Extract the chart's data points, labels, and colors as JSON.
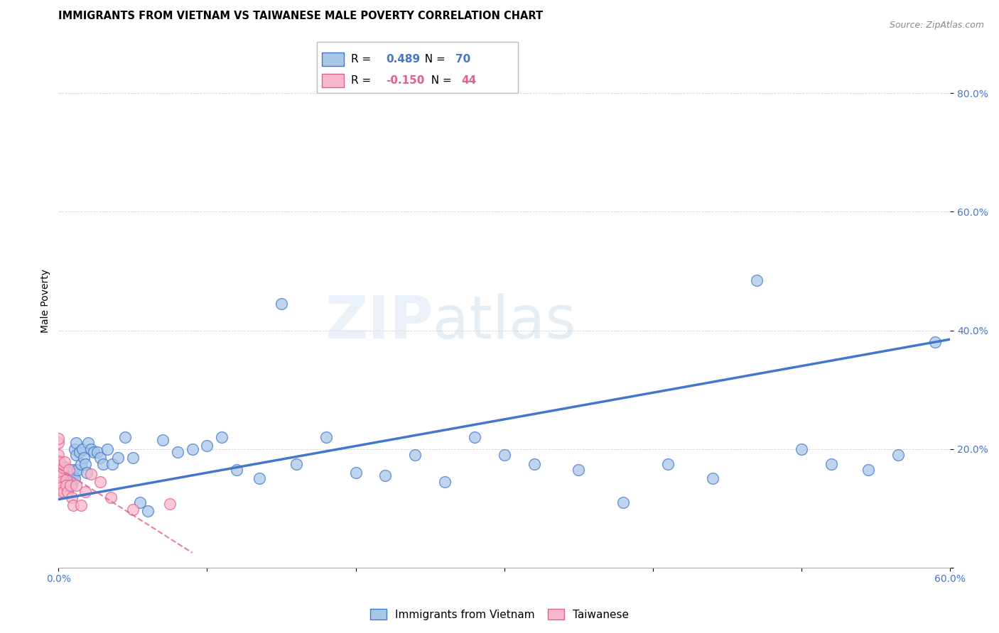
{
  "title": "IMMIGRANTS FROM VIETNAM VS TAIWANESE MALE POVERTY CORRELATION CHART",
  "source": "Source: ZipAtlas.com",
  "xlabel_label": "Immigrants from Vietnam",
  "ylabel_label": "Male Poverty",
  "xlim": [
    0.0,
    0.6
  ],
  "ylim": [
    0.0,
    0.9
  ],
  "xticks": [
    0.0,
    0.1,
    0.2,
    0.3,
    0.4,
    0.5,
    0.6
  ],
  "yticks": [
    0.0,
    0.2,
    0.4,
    0.6,
    0.8
  ],
  "xtick_labels": [
    "0.0%",
    "",
    "",
    "",
    "",
    "",
    "60.0%"
  ],
  "ytick_labels": [
    "",
    "20.0%",
    "40.0%",
    "60.0%",
    "80.0%"
  ],
  "blue_R": "0.489",
  "blue_N": "70",
  "pink_R": "-0.150",
  "pink_N": "44",
  "blue_color": "#a8c8e8",
  "blue_line_color": "#4477cc",
  "pink_color": "#f8b8cc",
  "pink_line_color": "#e06090",
  "watermark_zip": "ZIP",
  "watermark_atlas": "atlas",
  "blue_x": [
    0.001,
    0.002,
    0.002,
    0.003,
    0.003,
    0.004,
    0.004,
    0.005,
    0.005,
    0.006,
    0.006,
    0.007,
    0.007,
    0.008,
    0.008,
    0.009,
    0.009,
    0.01,
    0.01,
    0.011,
    0.011,
    0.012,
    0.012,
    0.013,
    0.014,
    0.015,
    0.016,
    0.017,
    0.018,
    0.019,
    0.02,
    0.022,
    0.024,
    0.026,
    0.028,
    0.03,
    0.033,
    0.036,
    0.04,
    0.045,
    0.05,
    0.055,
    0.06,
    0.07,
    0.08,
    0.09,
    0.1,
    0.11,
    0.12,
    0.135,
    0.15,
    0.16,
    0.18,
    0.2,
    0.22,
    0.24,
    0.26,
    0.28,
    0.3,
    0.32,
    0.35,
    0.38,
    0.41,
    0.44,
    0.47,
    0.5,
    0.52,
    0.545,
    0.565,
    0.59
  ],
  "blue_y": [
    0.155,
    0.165,
    0.145,
    0.16,
    0.14,
    0.15,
    0.17,
    0.155,
    0.145,
    0.16,
    0.14,
    0.155,
    0.165,
    0.145,
    0.16,
    0.15,
    0.14,
    0.155,
    0.165,
    0.15,
    0.2,
    0.21,
    0.19,
    0.165,
    0.195,
    0.175,
    0.2,
    0.185,
    0.175,
    0.16,
    0.21,
    0.2,
    0.195,
    0.195,
    0.185,
    0.175,
    0.2,
    0.175,
    0.185,
    0.22,
    0.185,
    0.11,
    0.095,
    0.215,
    0.195,
    0.2,
    0.205,
    0.22,
    0.165,
    0.15,
    0.445,
    0.175,
    0.22,
    0.16,
    0.155,
    0.19,
    0.145,
    0.22,
    0.19,
    0.175,
    0.165,
    0.11,
    0.175,
    0.15,
    0.485,
    0.2,
    0.175,
    0.165,
    0.19,
    0.38
  ],
  "pink_x": [
    0.0,
    0.0,
    0.0,
    0.0,
    0.0,
    0.0,
    0.0,
    0.0,
    0.0,
    0.0,
    0.0,
    0.0,
    0.001,
    0.001,
    0.001,
    0.001,
    0.001,
    0.001,
    0.001,
    0.001,
    0.001,
    0.001,
    0.002,
    0.002,
    0.002,
    0.002,
    0.003,
    0.003,
    0.004,
    0.005,
    0.005,
    0.006,
    0.007,
    0.008,
    0.009,
    0.01,
    0.012,
    0.015,
    0.018,
    0.022,
    0.028,
    0.035,
    0.05,
    0.075
  ],
  "pink_y": [
    0.155,
    0.145,
    0.17,
    0.135,
    0.18,
    0.19,
    0.125,
    0.148,
    0.158,
    0.21,
    0.218,
    0.148,
    0.165,
    0.145,
    0.158,
    0.168,
    0.148,
    0.138,
    0.178,
    0.155,
    0.148,
    0.138,
    0.165,
    0.155,
    0.145,
    0.135,
    0.128,
    0.168,
    0.178,
    0.148,
    0.138,
    0.128,
    0.165,
    0.138,
    0.118,
    0.105,
    0.138,
    0.105,
    0.128,
    0.158,
    0.145,
    0.118,
    0.098,
    0.108
  ],
  "blue_trendline_x": [
    0.0,
    0.6
  ],
  "blue_trendline_y": [
    0.115,
    0.385
  ],
  "pink_trendline_x": [
    0.0,
    0.09
  ],
  "pink_trendline_y": [
    0.168,
    0.025
  ],
  "title_fontsize": 10.5,
  "axis_label_fontsize": 10,
  "tick_fontsize": 10,
  "legend_fontsize": 11
}
